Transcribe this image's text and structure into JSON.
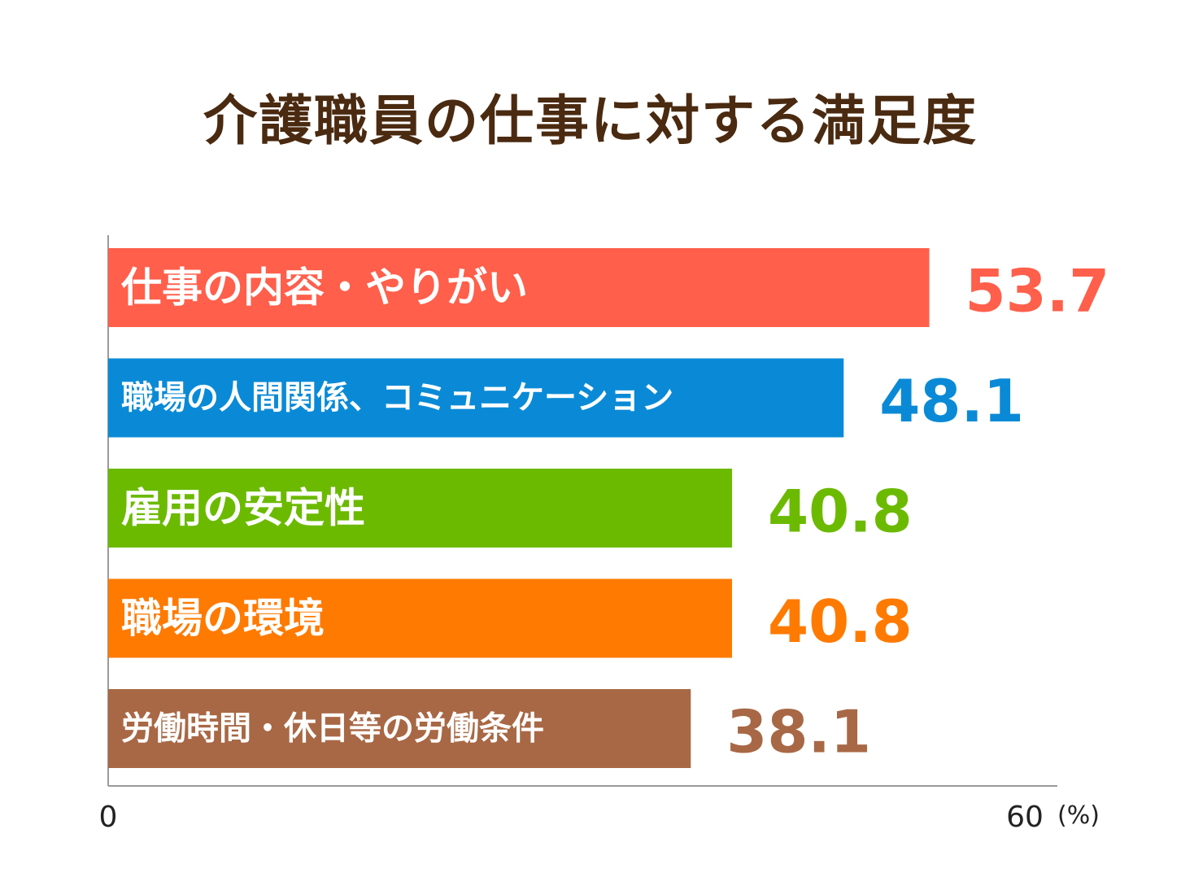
{
  "chart_data": {
    "type": "bar",
    "orientation": "horizontal",
    "title": "介護職員の仕事に対する満足度",
    "categories": [
      "仕事の内容・やりがい",
      "職場の人間関係、コミュニケーション",
      "雇用の安定性",
      "職場の環境",
      "労働時間・休日等の労働条件"
    ],
    "values": [
      53.7,
      48.1,
      40.8,
      40.8,
      38.1
    ],
    "value_labels": [
      "53.7",
      "48.1",
      "40.8",
      "40.8",
      "38.1"
    ],
    "colors": [
      "#ff5f4b",
      "#0a8ad6",
      "#6bba00",
      "#ff7a00",
      "#a86845"
    ],
    "xlim": [
      0,
      60
    ],
    "x_ticks": [
      "0",
      "60"
    ],
    "unit": "(%)",
    "title_color": "#4a2a10",
    "grid": false
  }
}
